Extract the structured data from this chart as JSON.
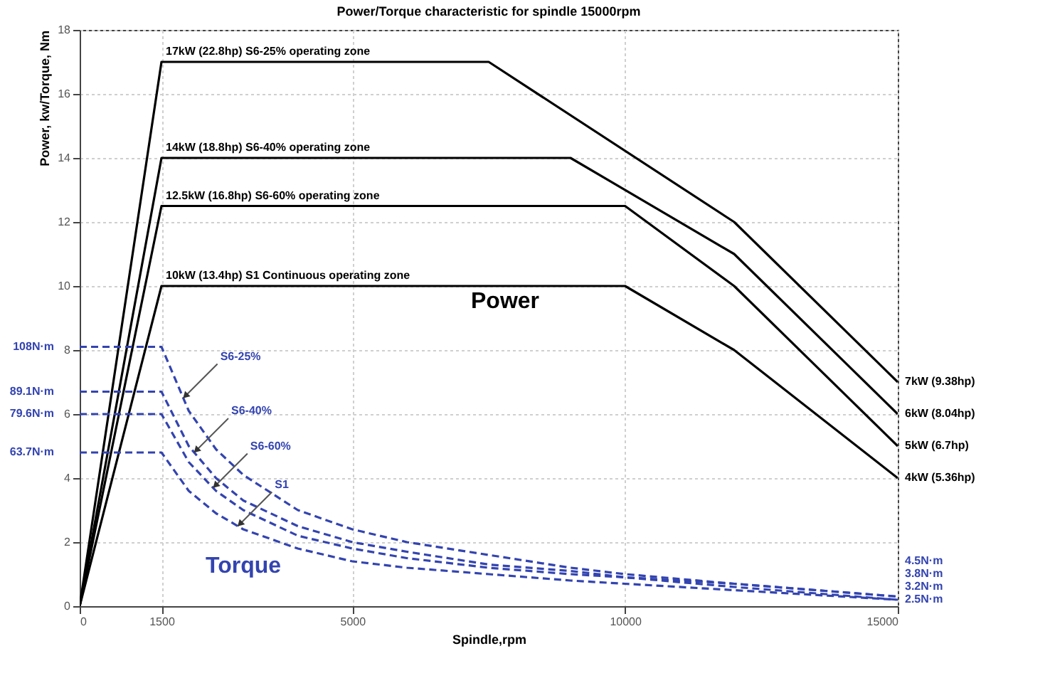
{
  "chart_data": {
    "type": "line",
    "title": "Power/Torque characteristic for spindle 15000rpm",
    "xlabel": "Spindle,rpm",
    "ylabel": "Power, kw/Torque, Nm",
    "xlim": [
      0,
      15000
    ],
    "ylim": [
      0,
      18
    ],
    "xticks": [
      0,
      1500,
      5000,
      10000,
      15000
    ],
    "yticks": [
      0,
      2,
      4,
      6,
      8,
      10,
      12,
      14,
      16,
      18
    ],
    "grid": true,
    "series": [
      {
        "name": "17kW (22.8hp) S6-25% operating zone",
        "color": "#000000",
        "line_style": "solid",
        "x": [
          0,
          1500,
          7500,
          12000,
          15000
        ],
        "values": [
          0,
          17,
          17,
          12,
          7
        ]
      },
      {
        "name": "14kW (18.8hp)  S6-40% operating zone",
        "color": "#000000",
        "line_style": "solid",
        "x": [
          0,
          1500,
          9000,
          12000,
          15000
        ],
        "values": [
          0,
          14,
          14,
          11,
          6
        ]
      },
      {
        "name": "12.5kW (16.8hp)  S6-60% operating zone",
        "color": "#000000",
        "line_style": "solid",
        "x": [
          0,
          1500,
          10000,
          12000,
          15000
        ],
        "values": [
          0,
          12.5,
          12.5,
          10,
          5
        ]
      },
      {
        "name": "10kW (13.4hp)    S1 Continuous operating zone",
        "color": "#000000",
        "line_style": "solid",
        "x": [
          0,
          1500,
          10000,
          12000,
          15000
        ],
        "values": [
          0,
          10,
          10,
          8,
          4
        ]
      },
      {
        "color": "#3344b0",
        "line_style": "dashed",
        "x": [
          0,
          1500,
          2000,
          2500,
          3000,
          4000,
          5000,
          6000,
          7500,
          9000,
          10000,
          12000,
          15000
        ],
        "values": [
          8.1,
          8.1,
          6.1,
          4.9,
          4.1,
          3.0,
          2.4,
          2.0,
          1.6,
          1.2,
          1.0,
          0.7,
          0.3
        ]
      },
      {
        "color": "#3344b0",
        "line_style": "dashed",
        "x": [
          0,
          1500,
          2000,
          2500,
          3000,
          4000,
          5000,
          6000,
          7500,
          9000,
          10000,
          12000,
          15000
        ],
        "values": [
          6.7,
          6.7,
          5.0,
          4.0,
          3.3,
          2.5,
          2.0,
          1.7,
          1.3,
          1.1,
          0.9,
          0.7,
          0.3
        ]
      },
      {
        "color": "#3344b0",
        "line_style": "dashed",
        "x": [
          0,
          1500,
          2000,
          2500,
          3000,
          4000,
          5000,
          6000,
          7500,
          9000,
          10000,
          12000,
          15000
        ],
        "values": [
          6.0,
          6.0,
          4.5,
          3.6,
          3.0,
          2.2,
          1.8,
          1.5,
          1.2,
          1.0,
          0.9,
          0.6,
          0.2
        ]
      },
      {
        "color": "#3344b0",
        "line_style": "dashed",
        "x": [
          0,
          1500,
          2000,
          2500,
          3000,
          4000,
          5000,
          6000,
          7500,
          9000,
          10000,
          12000,
          15000
        ],
        "values": [
          4.8,
          4.8,
          3.6,
          2.9,
          2.4,
          1.8,
          1.4,
          1.2,
          1.0,
          0.8,
          0.7,
          0.5,
          0.2
        ]
      }
    ],
    "annotations": [
      "Power",
      "Torque",
      {
        "text": "S6-25%",
        "x": 1900,
        "y": 6.5
      },
      {
        "text": "S6-40%",
        "x": 2100,
        "y": 4.8
      },
      {
        "text": "S6-60%",
        "x": 2450,
        "y": 3.7
      },
      {
        "text": "S1",
        "x": 2900,
        "y": 2.5
      },
      {
        "text": "7kW (9.38hp)",
        "x": 15000,
        "y": 7
      },
      {
        "text": "6kW (8.04hp)",
        "x": 15000,
        "y": 6
      },
      {
        "text": "5kW (6.7hp)",
        "x": 15000,
        "y": 5
      },
      {
        "text": "4kW (5.36hp)",
        "x": 15000,
        "y": 4
      },
      {
        "text": "108N·m",
        "x": 0,
        "y": 8.1
      },
      {
        "text": "89.1N·m",
        "x": 0,
        "y": 6.7
      },
      {
        "text": "79.6N·m",
        "x": 0,
        "y": 6.0
      },
      {
        "text": "63.7N·m",
        "x": 0,
        "y": 4.8
      },
      {
        "text": "4.5N·m",
        "x": 15000,
        "y": 0.3
      },
      {
        "text": "3.8N·m",
        "x": 15000,
        "y": 0.3
      },
      {
        "text": "3.2N·m",
        "x": 15000,
        "y": 0.2
      },
      {
        "text": "2.5N·m",
        "x": 15000,
        "y": 0.2
      }
    ]
  }
}
